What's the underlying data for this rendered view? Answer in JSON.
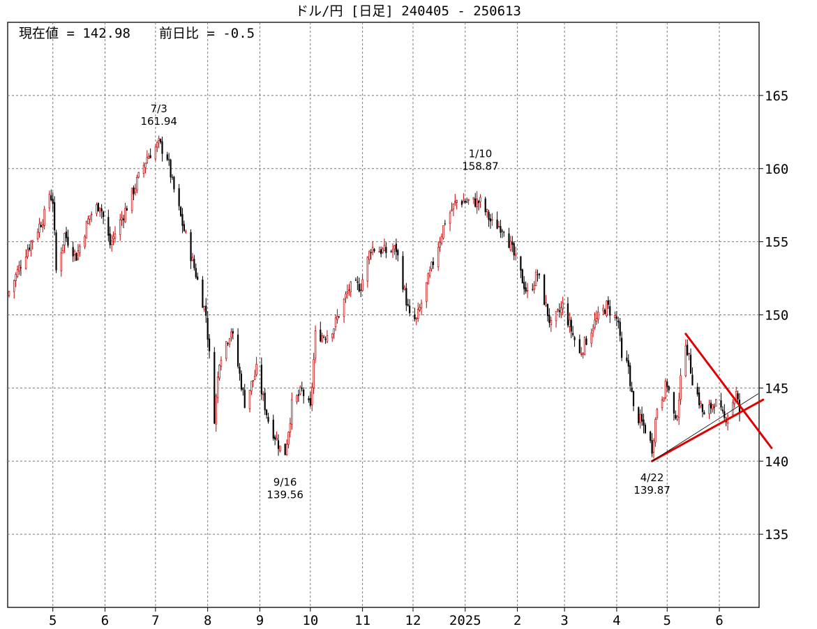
{
  "header": {
    "title": "ドル/円 [日足] 240405 - 250613",
    "current_label": "現在値 = 142.98",
    "change_label": "前日比 = -0.5"
  },
  "colors": {
    "up": "#c00000",
    "down": "#000000",
    "trendline": "#e00000",
    "grid": "#777777"
  },
  "chart_data": {
    "type": "candlestick",
    "title": "ドル/円 [日足] 240405 - 250613",
    "current_value": 142.98,
    "change": -0.5,
    "x_range": [
      "2024-04-05",
      "2025-06-13"
    ],
    "ylim": [
      130,
      170
    ],
    "y_ticks": [
      "135",
      "140",
      "145",
      "150",
      "155",
      "160",
      "165"
    ],
    "x_ticks": [
      {
        "date": "2024-05-01",
        "label": "5"
      },
      {
        "date": "2024-06-01",
        "label": "6"
      },
      {
        "date": "2024-07-01",
        "label": "7"
      },
      {
        "date": "2024-08-01",
        "label": "8"
      },
      {
        "date": "2024-09-01",
        "label": "9"
      },
      {
        "date": "2024-10-01",
        "label": "10"
      },
      {
        "date": "2024-11-01",
        "label": "11"
      },
      {
        "date": "2024-12-01",
        "label": "12"
      },
      {
        "date": "2025-01-01",
        "label": "2025"
      },
      {
        "date": "2025-02-01",
        "label": "2"
      },
      {
        "date": "2025-03-01",
        "label": "3"
      },
      {
        "date": "2025-04-01",
        "label": "4"
      },
      {
        "date": "2025-05-01",
        "label": "5"
      },
      {
        "date": "2025-06-01",
        "label": "6"
      }
    ],
    "grid": true,
    "series": [
      {
        "close_path": [
          [
            "2024-04-05",
            151.6
          ],
          [
            "2024-04-15",
            154.3
          ],
          [
            "2024-04-26",
            156.8
          ],
          [
            "2024-04-29",
            158.3
          ],
          [
            "2024-05-01",
            157.8
          ],
          [
            "2024-05-03",
            153.0
          ],
          [
            "2024-05-08",
            155.5
          ],
          [
            "2024-05-15",
            154.0
          ],
          [
            "2024-05-23",
            156.8
          ],
          [
            "2024-05-29",
            157.6
          ],
          [
            "2024-06-04",
            154.8
          ],
          [
            "2024-06-14",
            157.4
          ],
          [
            "2024-06-26",
            160.8
          ],
          [
            "2024-07-03",
            161.7
          ],
          [
            "2024-07-08",
            160.8
          ],
          [
            "2024-07-11",
            159.0
          ],
          [
            "2024-07-17",
            156.2
          ],
          [
            "2024-07-25",
            152.8
          ],
          [
            "2024-07-31",
            150.0
          ],
          [
            "2024-08-05",
            143.0
          ],
          [
            "2024-08-08",
            147.0
          ],
          [
            "2024-08-15",
            149.0
          ],
          [
            "2024-08-23",
            144.0
          ],
          [
            "2024-08-30",
            146.2
          ],
          [
            "2024-09-06",
            142.8
          ],
          [
            "2024-09-13",
            140.9
          ],
          [
            "2024-09-16",
            140.6
          ],
          [
            "2024-09-20",
            143.8
          ],
          [
            "2024-09-26",
            144.8
          ],
          [
            "2024-10-01",
            143.5
          ],
          [
            "2024-10-04",
            148.6
          ],
          [
            "2024-10-10",
            148.6
          ],
          [
            "2024-10-15",
            149.2
          ],
          [
            "2024-10-24",
            151.8
          ],
          [
            "2024-10-31",
            152.0
          ],
          [
            "2024-11-06",
            154.6
          ],
          [
            "2024-11-15",
            154.3
          ],
          [
            "2024-11-21",
            154.5
          ],
          [
            "2024-11-29",
            149.8
          ],
          [
            "2024-12-03",
            149.6
          ],
          [
            "2024-12-13",
            153.6
          ],
          [
            "2024-12-20",
            156.4
          ],
          [
            "2024-12-27",
            157.8
          ],
          [
            "2025-01-10",
            157.7
          ],
          [
            "2025-01-17",
            156.2
          ],
          [
            "2025-01-24",
            156.0
          ],
          [
            "2025-02-07",
            151.4
          ],
          [
            "2025-02-13",
            152.8
          ],
          [
            "2025-02-21",
            149.2
          ],
          [
            "2025-02-28",
            150.6
          ],
          [
            "2025-03-10",
            147.3
          ],
          [
            "2025-03-18",
            149.3
          ],
          [
            "2025-03-26",
            150.6
          ],
          [
            "2025-04-02",
            149.5
          ],
          [
            "2025-04-04",
            146.8
          ],
          [
            "2025-04-08",
            146.5
          ],
          [
            "2025-04-11",
            143.5
          ],
          [
            "2025-04-18",
            142.2
          ],
          [
            "2025-04-22",
            140.9
          ],
          [
            "2025-04-25",
            143.7
          ],
          [
            "2025-05-01",
            145.3
          ],
          [
            "2025-05-06",
            142.5
          ],
          [
            "2025-05-12",
            148.3
          ],
          [
            "2025-05-16",
            145.6
          ],
          [
            "2025-05-23",
            143.0
          ],
          [
            "2025-05-29",
            144.1
          ],
          [
            "2025-06-04",
            142.8
          ],
          [
            "2025-06-11",
            144.6
          ],
          [
            "2025-06-13",
            143.3
          ]
        ]
      }
    ],
    "annotations": [
      {
        "date": "2024-07-03",
        "date_label": "7/3",
        "value": 161.94,
        "value_label": "161.94",
        "position": "above"
      },
      {
        "date": "2024-09-16",
        "date_label": "9/16",
        "value": 139.56,
        "value_label": "139.56",
        "position": "below"
      },
      {
        "date": "2025-01-10",
        "date_label": "1/10",
        "value": 158.87,
        "value_label": "158.87",
        "position": "above"
      },
      {
        "date": "2025-04-22",
        "date_label": "4/22",
        "value": 139.87,
        "value_label": "139.87",
        "position": "below"
      }
    ],
    "trendlines": [
      {
        "name": "upper",
        "from": {
          "date": "2025-05-12",
          "value": 148.7
        },
        "to": {
          "date": "2025-07-02",
          "value": 140.9
        },
        "color": "#e00000",
        "style": "thick"
      },
      {
        "name": "lower",
        "from": {
          "date": "2025-04-22",
          "value": 140.0
        },
        "to": {
          "date": "2025-06-27",
          "value": 144.2
        },
        "color": "#e00000",
        "style": "thick"
      },
      {
        "name": "support-thin",
        "from": {
          "date": "2025-04-22",
          "value": 140.0
        },
        "to": {
          "date": "2025-06-24",
          "value": 144.6
        },
        "color": "#000000",
        "style": "thin"
      }
    ]
  }
}
